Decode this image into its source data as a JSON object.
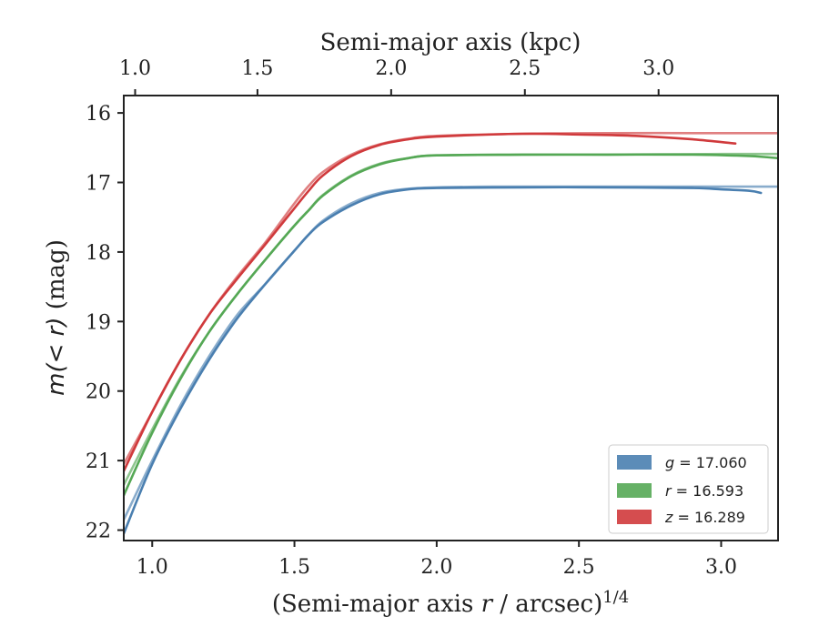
{
  "chart_data": {
    "type": "line",
    "xlabel": "(Semi-major axis r / arcsec)^{1/4}",
    "xlabel_parts": {
      "pre": "(Semi-major axis ",
      "var": "r",
      "post": " / arcsec)",
      "sup": "1/4"
    },
    "ylabel": "m(<r) (mag)",
    "ylabel_parts": {
      "math": "m(< r)",
      "unit": " (mag)"
    },
    "top_xlabel": "Semi-major axis (kpc)",
    "xlim": [
      0.9,
      3.2
    ],
    "ylim": [
      22.15,
      15.75
    ],
    "y_inverted": true,
    "x_ticks": [
      1.0,
      1.5,
      2.0,
      2.5,
      3.0
    ],
    "x_tick_labels": [
      "1.0",
      "1.5",
      "2.0",
      "2.5",
      "3.0"
    ],
    "y_ticks": [
      16,
      17,
      18,
      19,
      20,
      21,
      22
    ],
    "y_tick_labels": [
      "16",
      "17",
      "18",
      "19",
      "20",
      "21",
      "22"
    ],
    "top_ticks": [
      1.0,
      1.5,
      2.0,
      2.5,
      3.0
    ],
    "top_tick_labels": [
      "1.0",
      "1.5",
      "2.0",
      "2.5",
      "3.0"
    ],
    "top_tick_positions": [
      0.94,
      1.37,
      1.84,
      2.31,
      2.78
    ],
    "legend_placement": "lower-right",
    "legend": [
      {
        "label_var": "g",
        "label_value": " = 17.060",
        "color": "#4a7fb0"
      },
      {
        "label_var": "r",
        "label_value": " = 16.593",
        "color": "#55a855"
      },
      {
        "label_var": "z",
        "label_value": " = 16.289",
        "color": "#d03a3c"
      }
    ],
    "series": [
      {
        "name": "g = 17.060",
        "color": "#4a7fb0",
        "model": {
          "x": [
            0.9,
            1.0,
            1.1,
            1.2,
            1.3,
            1.4,
            1.5,
            1.55,
            1.6,
            1.7,
            1.8,
            1.9,
            2.0,
            2.2,
            2.5,
            3.0,
            3.2
          ],
          "y": [
            21.85,
            21.0,
            20.2,
            19.5,
            18.9,
            18.45,
            17.98,
            17.75,
            17.55,
            17.3,
            17.15,
            17.09,
            17.07,
            17.06,
            17.06,
            17.06,
            17.06
          ]
        },
        "measured": {
          "x": [
            0.9,
            1.0,
            1.1,
            1.2,
            1.3,
            1.4,
            1.5,
            1.55,
            1.6,
            1.7,
            1.8,
            1.9,
            2.0,
            2.3,
            2.6,
            2.9,
            3.0,
            3.1,
            3.14
          ],
          "y": [
            22.05,
            21.05,
            20.25,
            19.55,
            18.95,
            18.45,
            17.98,
            17.75,
            17.57,
            17.33,
            17.17,
            17.1,
            17.08,
            17.07,
            17.07,
            17.08,
            17.1,
            17.12,
            17.15
          ]
        }
      },
      {
        "name": "r = 16.593",
        "color": "#55a855",
        "model": {
          "x": [
            0.9,
            1.0,
            1.1,
            1.2,
            1.3,
            1.4,
            1.5,
            1.55,
            1.6,
            1.7,
            1.8,
            1.9,
            2.0,
            2.3,
            2.6,
            3.0,
            3.2
          ],
          "y": [
            21.35,
            20.55,
            19.8,
            19.15,
            18.6,
            18.1,
            17.62,
            17.4,
            17.18,
            16.9,
            16.73,
            16.65,
            16.61,
            16.6,
            16.6,
            16.59,
            16.59
          ]
        },
        "measured": {
          "x": [
            0.9,
            1.0,
            1.1,
            1.2,
            1.3,
            1.4,
            1.5,
            1.55,
            1.6,
            1.7,
            1.8,
            1.9,
            2.0,
            2.3,
            2.6,
            2.9,
            3.1,
            3.2
          ],
          "y": [
            21.5,
            20.6,
            19.82,
            19.15,
            18.6,
            18.1,
            17.62,
            17.4,
            17.19,
            16.91,
            16.74,
            16.65,
            16.61,
            16.6,
            16.6,
            16.6,
            16.62,
            16.65
          ]
        }
      },
      {
        "name": "z = 16.289",
        "color": "#d03a3c",
        "model": {
          "x": [
            0.9,
            1.0,
            1.1,
            1.2,
            1.3,
            1.4,
            1.5,
            1.55,
            1.6,
            1.7,
            1.8,
            1.9,
            2.0,
            2.3,
            2.6,
            3.0,
            3.2
          ],
          "y": [
            21.05,
            20.3,
            19.55,
            18.9,
            18.35,
            17.85,
            17.3,
            17.05,
            16.85,
            16.6,
            16.45,
            16.37,
            16.33,
            16.3,
            16.29,
            16.29,
            16.29
          ]
        },
        "measured": {
          "x": [
            0.9,
            1.0,
            1.1,
            1.2,
            1.3,
            1.4,
            1.5,
            1.55,
            1.6,
            1.7,
            1.8,
            1.9,
            2.0,
            2.3,
            2.5,
            2.7,
            2.9,
            3.05
          ],
          "y": [
            21.15,
            20.3,
            19.55,
            18.9,
            18.38,
            17.88,
            17.37,
            17.12,
            16.9,
            16.62,
            16.46,
            16.38,
            16.34,
            16.3,
            16.31,
            16.33,
            16.38,
            16.44
          ]
        }
      }
    ]
  }
}
